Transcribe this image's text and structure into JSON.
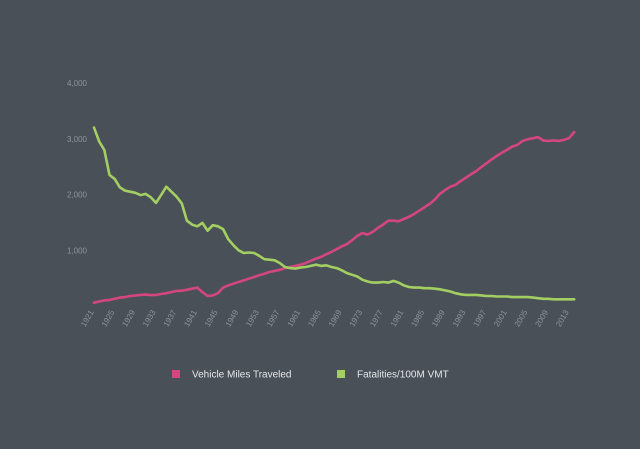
{
  "chart_data": {
    "type": "line",
    "title": "",
    "xlabel": "",
    "ylabel": "",
    "xlim": [
      1921,
      2013
    ],
    "ylim": [
      0,
      4000
    ],
    "grid": false,
    "legend_position": "bottom",
    "y_ticks": [
      {
        "value": 1000,
        "label": "1,000"
      },
      {
        "value": 2000,
        "label": "2,000"
      },
      {
        "value": 3000,
        "label": "3,000"
      },
      {
        "value": 4000,
        "label": "4,000"
      }
    ],
    "x_ticks": [
      "1921",
      "1925",
      "1929",
      "1933",
      "1937",
      "1941",
      "1945",
      "1949",
      "1953",
      "1957",
      "1961",
      "1965",
      "1969",
      "1973",
      "1977",
      "1981",
      "1985",
      "1989",
      "1993",
      "1997",
      "2001",
      "2005",
      "2009",
      "2013"
    ],
    "series": [
      {
        "name": "Vehicle Miles Traveled",
        "color": "#d4477e",
        "points": [
          [
            1921,
            60
          ],
          [
            1922,
            80
          ],
          [
            1923,
            100
          ],
          [
            1924,
            110
          ],
          [
            1925,
            130
          ],
          [
            1926,
            150
          ],
          [
            1927,
            160
          ],
          [
            1928,
            180
          ],
          [
            1929,
            190
          ],
          [
            1930,
            200
          ],
          [
            1931,
            205
          ],
          [
            1932,
            195
          ],
          [
            1933,
            200
          ],
          [
            1934,
            215
          ],
          [
            1935,
            230
          ],
          [
            1936,
            250
          ],
          [
            1937,
            270
          ],
          [
            1938,
            275
          ],
          [
            1939,
            290
          ],
          [
            1940,
            310
          ],
          [
            1941,
            330
          ],
          [
            1942,
            250
          ],
          [
            1943,
            180
          ],
          [
            1944,
            190
          ],
          [
            1945,
            230
          ],
          [
            1946,
            330
          ],
          [
            1947,
            370
          ],
          [
            1948,
            400
          ],
          [
            1949,
            430
          ],
          [
            1950,
            460
          ],
          [
            1951,
            490
          ],
          [
            1952,
            520
          ],
          [
            1953,
            550
          ],
          [
            1954,
            580
          ],
          [
            1955,
            610
          ],
          [
            1956,
            630
          ],
          [
            1957,
            650
          ],
          [
            1958,
            680
          ],
          [
            1959,
            700
          ],
          [
            1960,
            720
          ],
          [
            1961,
            740
          ],
          [
            1962,
            770
          ],
          [
            1963,
            810
          ],
          [
            1964,
            850
          ],
          [
            1965,
            880
          ],
          [
            1966,
            930
          ],
          [
            1967,
            970
          ],
          [
            1968,
            1020
          ],
          [
            1969,
            1070
          ],
          [
            1970,
            1110
          ],
          [
            1971,
            1180
          ],
          [
            1972,
            1260
          ],
          [
            1973,
            1310
          ],
          [
            1974,
            1280
          ],
          [
            1975,
            1330
          ],
          [
            1976,
            1400
          ],
          [
            1977,
            1460
          ],
          [
            1978,
            1530
          ],
          [
            1979,
            1530
          ],
          [
            1980,
            1520
          ],
          [
            1981,
            1560
          ],
          [
            1982,
            1600
          ],
          [
            1983,
            1650
          ],
          [
            1984,
            1710
          ],
          [
            1985,
            1770
          ],
          [
            1986,
            1830
          ],
          [
            1987,
            1910
          ],
          [
            1988,
            2010
          ],
          [
            1989,
            2080
          ],
          [
            1990,
            2140
          ],
          [
            1991,
            2170
          ],
          [
            1992,
            2240
          ],
          [
            1993,
            2300
          ],
          [
            1994,
            2360
          ],
          [
            1995,
            2420
          ],
          [
            1996,
            2490
          ],
          [
            1997,
            2560
          ],
          [
            1998,
            2630
          ],
          [
            1999,
            2690
          ],
          [
            2000,
            2750
          ],
          [
            2001,
            2800
          ],
          [
            2002,
            2860
          ],
          [
            2003,
            2890
          ],
          [
            2004,
            2960
          ],
          [
            2005,
            2990
          ],
          [
            2006,
            3010
          ],
          [
            2007,
            3030
          ],
          [
            2008,
            2970
          ],
          [
            2009,
            2960
          ],
          [
            2010,
            2970
          ],
          [
            2011,
            2960
          ],
          [
            2012,
            2980
          ],
          [
            2013,
            3010
          ],
          [
            2014,
            3120
          ]
        ]
      },
      {
        "name": "Fatalities/100M VMT",
        "color": "#a3cf62",
        "points": [
          [
            1921,
            3200
          ],
          [
            1922,
            2950
          ],
          [
            1923,
            2800
          ],
          [
            1924,
            2350
          ],
          [
            1925,
            2280
          ],
          [
            1926,
            2130
          ],
          [
            1927,
            2070
          ],
          [
            1928,
            2050
          ],
          [
            1929,
            2030
          ],
          [
            1930,
            1990
          ],
          [
            1931,
            2010
          ],
          [
            1932,
            1950
          ],
          [
            1933,
            1850
          ],
          [
            1934,
            1990
          ],
          [
            1935,
            2140
          ],
          [
            1936,
            2050
          ],
          [
            1937,
            1960
          ],
          [
            1938,
            1840
          ],
          [
            1939,
            1530
          ],
          [
            1940,
            1460
          ],
          [
            1941,
            1430
          ],
          [
            1942,
            1490
          ],
          [
            1943,
            1350
          ],
          [
            1944,
            1450
          ],
          [
            1945,
            1430
          ],
          [
            1946,
            1380
          ],
          [
            1947,
            1200
          ],
          [
            1948,
            1090
          ],
          [
            1949,
            1000
          ],
          [
            1950,
            950
          ],
          [
            1951,
            960
          ],
          [
            1952,
            950
          ],
          [
            1953,
            900
          ],
          [
            1954,
            840
          ],
          [
            1955,
            830
          ],
          [
            1956,
            820
          ],
          [
            1957,
            770
          ],
          [
            1958,
            700
          ],
          [
            1959,
            680
          ],
          [
            1960,
            670
          ],
          [
            1961,
            690
          ],
          [
            1962,
            700
          ],
          [
            1963,
            720
          ],
          [
            1964,
            740
          ],
          [
            1965,
            720
          ],
          [
            1966,
            730
          ],
          [
            1967,
            700
          ],
          [
            1968,
            680
          ],
          [
            1969,
            640
          ],
          [
            1970,
            590
          ],
          [
            1971,
            560
          ],
          [
            1972,
            530
          ],
          [
            1973,
            470
          ],
          [
            1974,
            440
          ],
          [
            1975,
            420
          ],
          [
            1976,
            420
          ],
          [
            1977,
            430
          ],
          [
            1978,
            420
          ],
          [
            1979,
            450
          ],
          [
            1980,
            420
          ],
          [
            1981,
            370
          ],
          [
            1982,
            340
          ],
          [
            1983,
            330
          ],
          [
            1984,
            330
          ],
          [
            1985,
            320
          ],
          [
            1986,
            320
          ],
          [
            1987,
            310
          ],
          [
            1988,
            300
          ],
          [
            1989,
            280
          ],
          [
            1990,
            260
          ],
          [
            1991,
            230
          ],
          [
            1992,
            210
          ],
          [
            1993,
            200
          ],
          [
            1994,
            200
          ],
          [
            1995,
            200
          ],
          [
            1996,
            190
          ],
          [
            1997,
            180
          ],
          [
            1998,
            180
          ],
          [
            1999,
            170
          ],
          [
            2000,
            170
          ],
          [
            2001,
            170
          ],
          [
            2002,
            160
          ],
          [
            2003,
            160
          ],
          [
            2004,
            160
          ],
          [
            2005,
            160
          ],
          [
            2006,
            150
          ],
          [
            2007,
            140
          ],
          [
            2008,
            130
          ],
          [
            2009,
            130
          ],
          [
            2010,
            120
          ],
          [
            2011,
            120
          ],
          [
            2012,
            120
          ],
          [
            2013,
            120
          ],
          [
            2014,
            120
          ]
        ]
      }
    ]
  }
}
